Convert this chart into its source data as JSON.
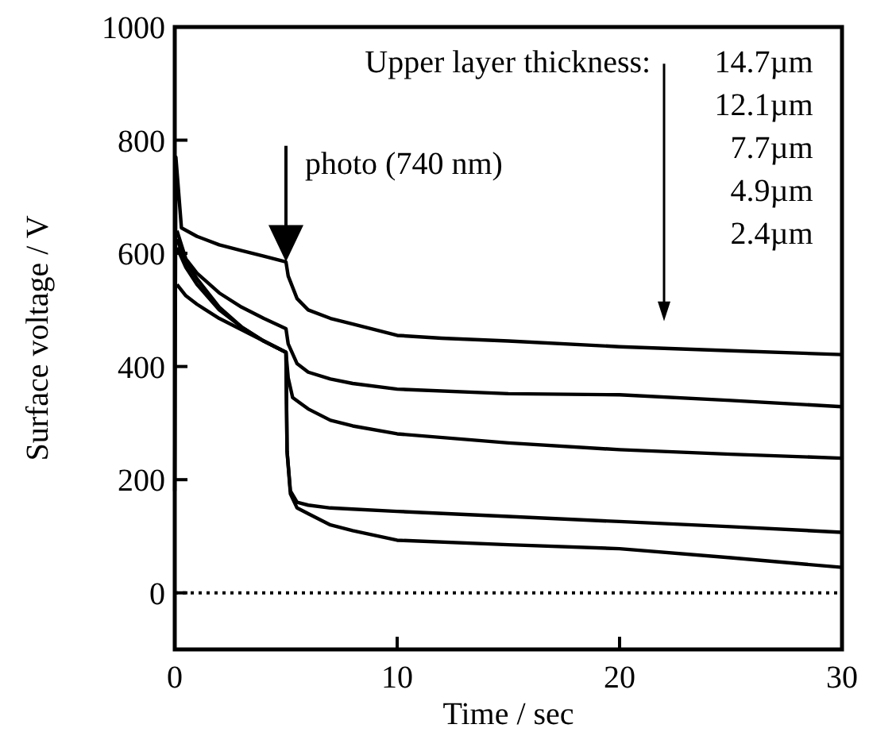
{
  "chart_data": {
    "type": "line",
    "xlabel": "Time / sec",
    "ylabel": "Surface voltage / V",
    "xlim": [
      0,
      30
    ],
    "ylim": [
      -100,
      1000
    ],
    "xticks": [
      0,
      10,
      20,
      30
    ],
    "yticks": [
      0,
      200,
      400,
      600,
      800,
      1000
    ],
    "grid": false,
    "marker": "none",
    "line_style": "solid",
    "series": [
      {
        "color": "#000000",
        "x": [
          0,
          0.05,
          0.3,
          1,
          2,
          3,
          4,
          5,
          5.1,
          5.5,
          6,
          7,
          8,
          10,
          12,
          15,
          20,
          25,
          30
        ],
        "values": [
          180,
          770,
          645,
          630,
          615,
          605,
          595,
          585,
          560,
          520,
          500,
          485,
          475,
          455,
          450,
          445,
          435,
          428,
          421
        ]
      },
      {
        "color": "#000000",
        "x": [
          0.1,
          0.5,
          1,
          2,
          3,
          4,
          5,
          5.1,
          5.5,
          6,
          7,
          8,
          10,
          15,
          20,
          25,
          30
        ],
        "values": [
          640,
          590,
          565,
          530,
          505,
          485,
          467,
          440,
          405,
          390,
          378,
          370,
          360,
          352,
          350,
          340,
          329
        ]
      },
      {
        "color": "#000000",
        "x": [
          0.1,
          0.5,
          1,
          2,
          3,
          4,
          5,
          5.1,
          5.3,
          6,
          7,
          8,
          10,
          15,
          20,
          25,
          30
        ],
        "values": [
          610,
          575,
          545,
          500,
          470,
          445,
          425,
          380,
          345,
          325,
          305,
          295,
          281,
          265,
          253,
          245,
          238
        ]
      },
      {
        "color": "#000000",
        "x": [
          0.1,
          0.5,
          1,
          2,
          3,
          4,
          5,
          5.05,
          5.2,
          5.5,
          6,
          7,
          8,
          10,
          15,
          20,
          25,
          30
        ],
        "values": [
          625,
          585,
          555,
          505,
          470,
          445,
          425,
          250,
          180,
          160,
          155,
          150,
          148,
          144,
          135,
          126,
          117,
          107
        ]
      },
      {
        "color": "#000000",
        "x": [
          0.1,
          0.5,
          1,
          2,
          3,
          4,
          5,
          5.05,
          5.2,
          5.5,
          6,
          7,
          8,
          10,
          15,
          20,
          25,
          30
        ],
        "values": [
          545,
          525,
          510,
          485,
          465,
          445,
          425,
          250,
          175,
          150,
          140,
          120,
          110,
          93,
          85,
          78,
          62,
          45
        ]
      }
    ],
    "ref_lines": [
      {
        "axis": "y",
        "value": 0,
        "line_style": "dotted",
        "color": "#000000"
      }
    ],
    "annotations": [
      "photo (740 nm)",
      "Upper layer thickness:",
      "14.7µm",
      "12.1µm",
      "7.7µm",
      "4.9µm",
      "2.4µm"
    ]
  }
}
